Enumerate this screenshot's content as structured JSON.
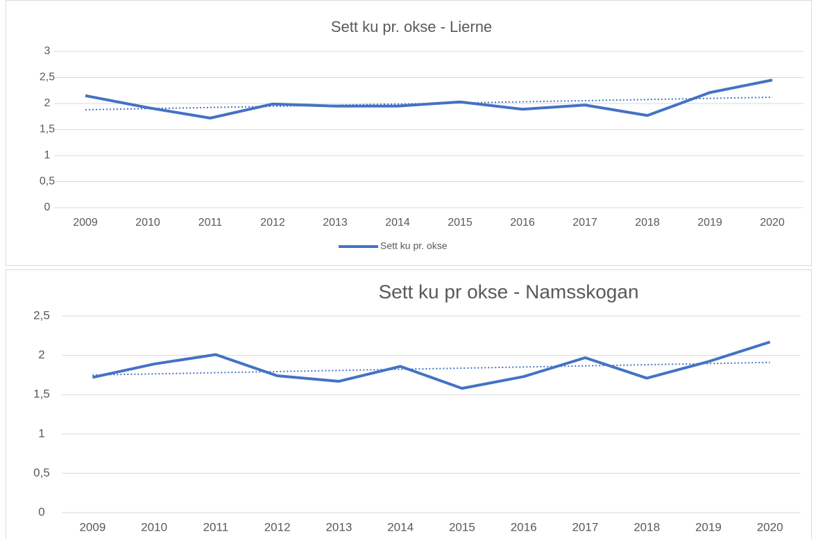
{
  "chart_data": [
    {
      "type": "line",
      "title": "Sett ku pr. okse - Lierne",
      "categories": [
        "2009",
        "2010",
        "2011",
        "2012",
        "2013",
        "2014",
        "2015",
        "2016",
        "2017",
        "2018",
        "2019",
        "2020"
      ],
      "series": [
        {
          "name": "Sett ku pr. okse",
          "color": "#4472c4",
          "values": [
            2.15,
            1.92,
            1.72,
            1.99,
            1.95,
            1.95,
            2.03,
            1.89,
            1.97,
            1.77,
            2.21,
            2.45
          ]
        }
      ],
      "trendline": {
        "values": [
          1.88,
          2.12
        ],
        "color": "#4472c4",
        "style": "dotted"
      },
      "ylim": [
        0,
        3
      ],
      "yticks": [
        0,
        {
          "value": 0.5,
          "label": "0,5"
        },
        1,
        {
          "value": 1.5,
          "label": "1,5"
        },
        2,
        {
          "value": 2.5,
          "label": "2,5"
        },
        3
      ],
      "grid": true,
      "legend": "bottom"
    },
    {
      "type": "line",
      "title": "Sett ku pr okse - Namsskogan",
      "categories": [
        "2009",
        "2010",
        "2011",
        "2012",
        "2013",
        "2014",
        "2015",
        "2016",
        "2017",
        "2018",
        "2019",
        "2020"
      ],
      "series": [
        {
          "color": "#4472c4",
          "values": [
            1.72,
            1.89,
            2.01,
            1.74,
            1.67,
            1.86,
            1.58,
            1.73,
            1.97,
            1.71,
            1.92,
            2.17
          ]
        }
      ],
      "trendline": {
        "values": [
          1.75,
          1.91
        ],
        "color": "#4472c4",
        "style": "dotted"
      },
      "ylim": [
        0,
        2.5
      ],
      "yticks": [
        0,
        {
          "value": 0.5,
          "label": "0,5"
        },
        1,
        {
          "value": 1.5,
          "label": "1,5"
        },
        2,
        {
          "value": 2.5,
          "label": "2,5"
        }
      ],
      "grid": true
    }
  ]
}
